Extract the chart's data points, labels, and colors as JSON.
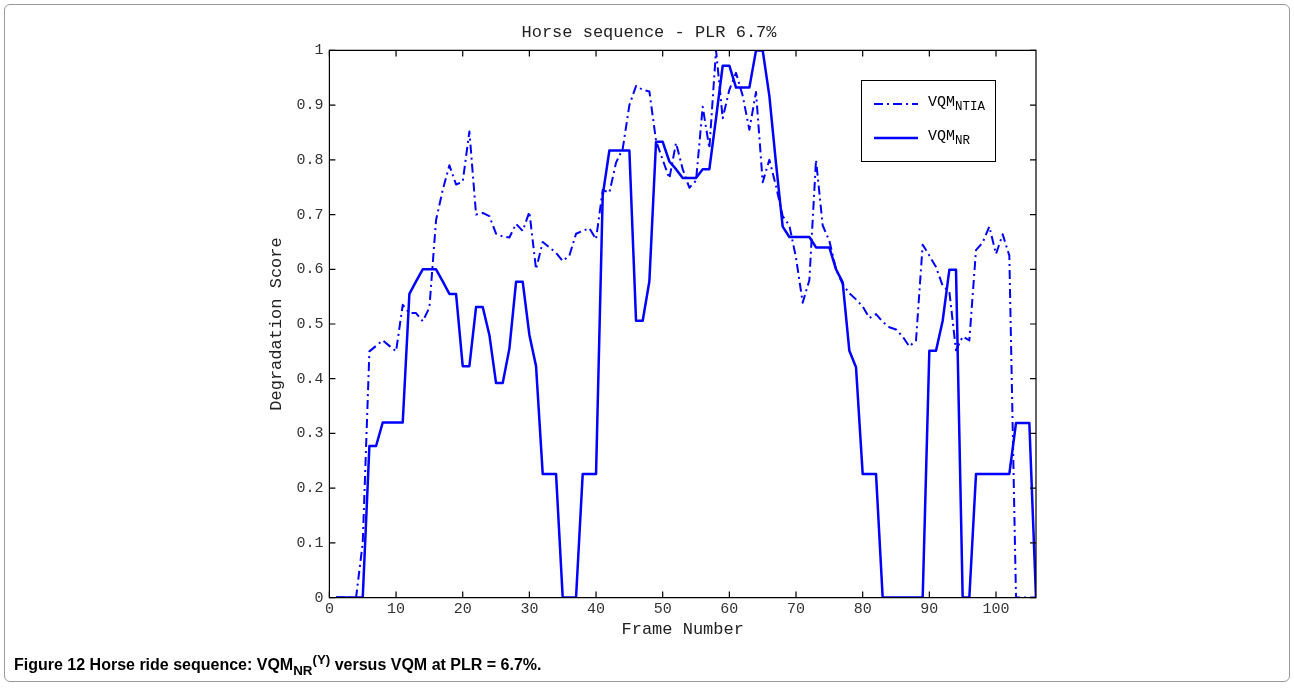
{
  "chart_data": {
    "type": "line",
    "title": "Horse sequence - PLR 6.7%",
    "xlabel": "Frame Number",
    "ylabel": "Degradation Score",
    "x": [
      1,
      2,
      3,
      4,
      5,
      6,
      7,
      8,
      9,
      10,
      11,
      12,
      13,
      14,
      15,
      16,
      17,
      18,
      19,
      20,
      21,
      22,
      23,
      24,
      25,
      26,
      27,
      28,
      29,
      30,
      31,
      32,
      33,
      34,
      35,
      36,
      37,
      38,
      39,
      40,
      41,
      42,
      43,
      44,
      45,
      46,
      47,
      48,
      49,
      50,
      51,
      52,
      53,
      54,
      55,
      56,
      57,
      58,
      59,
      60,
      61,
      62,
      63,
      64,
      65,
      66,
      67,
      68,
      69,
      70,
      71,
      72,
      73,
      74,
      75,
      76,
      77,
      78,
      79,
      80,
      81,
      82,
      83,
      84,
      85,
      86,
      87,
      88,
      89,
      90,
      91,
      92,
      93,
      94,
      95,
      96,
      97,
      98,
      99,
      100,
      101,
      102,
      103,
      104,
      105,
      106
    ],
    "series": [
      {
        "name": "VQM$_{NTIA}$",
        "color": "#0000ff",
        "line_style": "dashed",
        "values": [
          0,
          0,
          0,
          0,
          0.1,
          0.45,
          0.46,
          0.47,
          0.46,
          0.45,
          0.535,
          0.52,
          0.52,
          0.505,
          0.53,
          0.69,
          0.745,
          0.79,
          0.755,
          0.76,
          0.852,
          0.7,
          0.703,
          0.697,
          0.665,
          0.66,
          0.658,
          0.683,
          0.67,
          0.705,
          0.6,
          0.65,
          0.64,
          0.63,
          0.615,
          0.625,
          0.665,
          0.67,
          0.675,
          0.655,
          0.745,
          0.74,
          0.795,
          0.82,
          0.9,
          0.935,
          0.928,
          0.925,
          0.835,
          0.8,
          0.766,
          0.831,
          0.783,
          0.749,
          0.762,
          0.897,
          0.821,
          1.0,
          0.876,
          0.928,
          0.959,
          0.917,
          0.855,
          0.924,
          0.759,
          0.8,
          0.752,
          0.697,
          0.68,
          0.621,
          0.539,
          0.58,
          0.8,
          0.68,
          0.652,
          0.6,
          0.573,
          0.556,
          0.545,
          0.532,
          0.511,
          0.518,
          0.504,
          0.494,
          0.49,
          0.477,
          0.459,
          0.47,
          0.645,
          0.625,
          0.604,
          0.57,
          0.559,
          0.452,
          0.477,
          0.47,
          0.635,
          0.649,
          0.678,
          0.628,
          0.664,
          0.625,
          0,
          0,
          0,
          0
        ]
      },
      {
        "name": "VQM$_{NR}$",
        "color": "#0000ff",
        "line_style": "solid",
        "values": [
          0,
          0,
          0,
          0,
          0,
          0.277,
          0.277,
          0.32,
          0.32,
          0.32,
          0.32,
          0.555,
          0.578,
          0.6,
          0.6,
          0.6,
          0.578,
          0.555,
          0.555,
          0.423,
          0.423,
          0.531,
          0.531,
          0.48,
          0.392,
          0.392,
          0.455,
          0.577,
          0.577,
          0.48,
          0.423,
          0.226,
          0.226,
          0.226,
          0,
          0,
          0,
          0.226,
          0.226,
          0.226,
          0.735,
          0.817,
          0.817,
          0.817,
          0.817,
          0.506,
          0.506,
          0.578,
          0.833,
          0.833,
          0.797,
          0.783,
          0.767,
          0.767,
          0.767,
          0.783,
          0.783,
          0.876,
          0.972,
          0.972,
          0.932,
          0.932,
          0.932,
          1.0,
          1.0,
          0.917,
          0.793,
          0.678,
          0.659,
          0.659,
          0.659,
          0.659,
          0.64,
          0.64,
          0.64,
          0.6,
          0.576,
          0.451,
          0.421,
          0.226,
          0.226,
          0.226,
          0,
          0,
          0,
          0,
          0,
          0,
          0,
          0.451,
          0.451,
          0.506,
          0.599,
          0.599,
          0,
          0,
          0.226,
          0.226,
          0.226,
          0.226,
          0.226,
          0.226,
          0.319,
          0.319,
          0.319,
          0
        ]
      }
    ],
    "xlim": [
      0,
      106
    ],
    "xticks": [
      0,
      10,
      20,
      30,
      40,
      50,
      60,
      70,
      80,
      90,
      100
    ],
    "ylim": [
      0,
      1
    ],
    "yticks": [
      0,
      0.1,
      0.2,
      0.3,
      0.4,
      0.5,
      0.6,
      0.7,
      0.8,
      0.9,
      1
    ],
    "grid": false,
    "legend": "top right",
    "marker": "none",
    "annotations": [
      "Figure 12 Horse ride sequence: VQM$_{NR}$$^{(Y)}$ versus VQM at PLR = 6.7%."
    ]
  }
}
